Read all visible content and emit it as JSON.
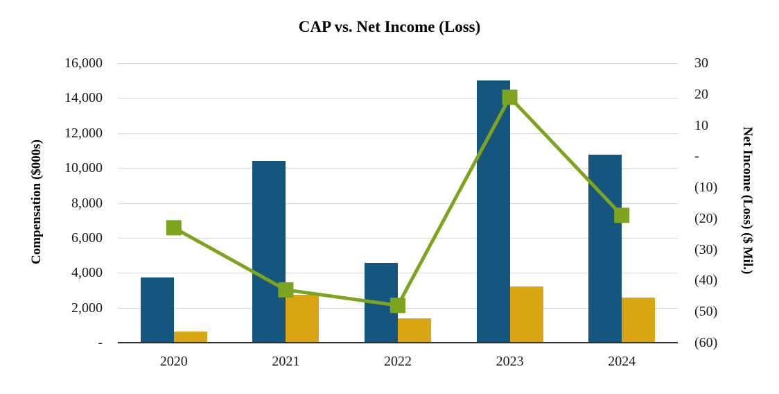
{
  "title": "CAP vs. Net Income (Loss)",
  "axes": {
    "left": {
      "title": "Compensation ($000s)",
      "tick_labels": [
        "16,000",
        "14,000",
        "12,000",
        "10,000",
        "8,000",
        "6,000",
        "4,000",
        "2,000",
        "-"
      ],
      "tick_values": [
        16000,
        14000,
        12000,
        10000,
        8000,
        6000,
        4000,
        2000,
        0
      ]
    },
    "right": {
      "title": "Net Income (Loss) ($ Mil.)",
      "tick_labels": [
        "30",
        "20",
        "10",
        "-",
        "(10)",
        "(20)",
        "(30)",
        "(40)",
        "(50)",
        "(60)"
      ],
      "tick_values": [
        30,
        20,
        10,
        0,
        -10,
        -20,
        -30,
        -40,
        -50,
        -60
      ]
    },
    "x": {
      "tick_labels": [
        "2020",
        "2021",
        "2022",
        "2023",
        "2024"
      ]
    }
  },
  "chart_data": {
    "type": "combo",
    "categories": [
      "2020",
      "2021",
      "2022",
      "2023",
      "2024"
    ],
    "series": [
      {
        "name": "Compensation bars (dark blue)",
        "chart_type": "bar",
        "axis": "left",
        "color": "#16567E",
        "values": [
          3750,
          10400,
          4550,
          15000,
          10750
        ]
      },
      {
        "name": "Compensation bars (gold)",
        "chart_type": "bar",
        "axis": "left",
        "color": "#D9A513",
        "values": [
          650,
          2750,
          1400,
          3200,
          2600
        ]
      },
      {
        "name": "Net Income (Loss) ($ Mil.)",
        "chart_type": "line",
        "axis": "right",
        "color": "#7CA41E",
        "values": [
          -23,
          -43,
          -48,
          19,
          -19
        ]
      }
    ],
    "title": "CAP vs. Net Income (Loss)",
    "ylabel_left": "Compensation ($000s)",
    "ylabel_right": "Net Income (Loss) ($ Mil.)",
    "ylim_left": [
      0,
      16000
    ],
    "ylim_right": [
      -60,
      30
    ],
    "grid": true,
    "legend": false,
    "marker": "square"
  },
  "colors": {
    "gridline": "#D9D9D9",
    "axis_line": "#2E2E2E",
    "text": "#1A1A1A"
  }
}
